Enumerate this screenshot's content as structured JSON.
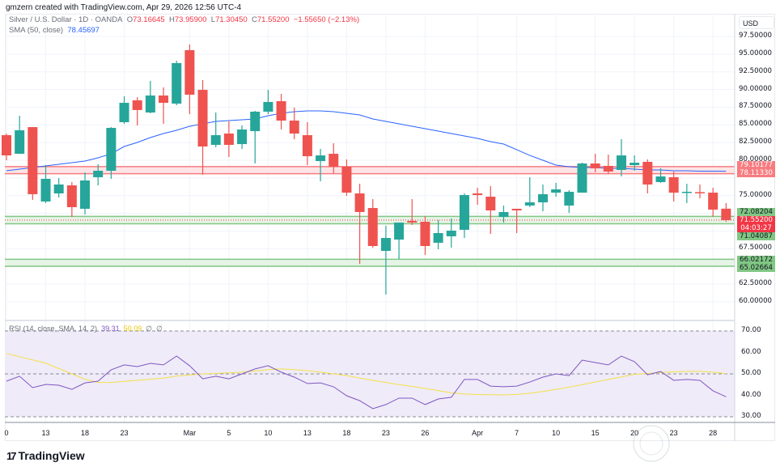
{
  "header": {
    "credit": "gmzern created with TradingView.com, Apr 29, 2026 12:56 UTC-4"
  },
  "legend": {
    "symbol": "Silver / U.S. Dollar · 1D · OANDA",
    "open_label": "O",
    "open": "73.16645",
    "high_label": "H",
    "high": "73.95900",
    "low_label": "L",
    "low": "71.30450",
    "close_label": "C",
    "close": "71.55200",
    "change": "−1.55650 (−2.13%)",
    "sma_label": "SMA (50, close)",
    "sma_value": "78.45697"
  },
  "rsi_legend": {
    "label": "RSI (14, close, SMA, 14, 2)",
    "rsi_value": "39.31",
    "sma_value": "50.09",
    "extra1": "∅",
    "extra2": "∅"
  },
  "price_axis": {
    "currency": "USD",
    "ticks": [
      "97.50000",
      "95.00000",
      "92.50000",
      "90.00000",
      "87.50000",
      "85.00000",
      "82.50000",
      "80.00000",
      "75.00000",
      "67.50000",
      "62.50000",
      "60.00000"
    ],
    "tags": {
      "red_band_top": "79.10177",
      "red_band_bottom": "78.11330",
      "green_top_1": "72.08204",
      "current_price": "71.55200",
      "countdown": "04:03:27",
      "green_bottom_1": "71.04087",
      "green_top_2": "66.02172",
      "green_bottom_2": "65.02664"
    }
  },
  "rsi_axis": {
    "ticks": [
      "70.00",
      "60.00",
      "50.00",
      "40.00",
      "30.00"
    ]
  },
  "colors": {
    "up": "#26a69a",
    "down": "#ef5350",
    "sma": "#2962ff",
    "rsi": "#7e57c2",
    "rsi_sma": "#f5e04a",
    "red_band": "#f77c80",
    "green_band": "#81c784"
  },
  "chart_data": {
    "type": "candlestick",
    "ylim": [
      59,
      98
    ],
    "zones": [
      {
        "type": "resistance",
        "top": 79.10177,
        "bottom": 78.1133
      },
      {
        "type": "support",
        "top": 72.08204,
        "bottom": 71.04087
      },
      {
        "type": "support",
        "top": 66.02172,
        "bottom": 65.02664
      }
    ],
    "x_ticks": [
      {
        "index": 0,
        "label": "0"
      },
      {
        "index": 3,
        "label": "13"
      },
      {
        "index": 6,
        "label": "18"
      },
      {
        "index": 9,
        "label": "23"
      },
      {
        "index": 14,
        "label": "Mar"
      },
      {
        "index": 17,
        "label": "5"
      },
      {
        "index": 20,
        "label": "10"
      },
      {
        "index": 23,
        "label": "13"
      },
      {
        "index": 26,
        "label": "18"
      },
      {
        "index": 29,
        "label": "23"
      },
      {
        "index": 32,
        "label": "26"
      },
      {
        "index": 36,
        "label": "Apr"
      },
      {
        "index": 39,
        "label": "7"
      },
      {
        "index": 42,
        "label": "10"
      },
      {
        "index": 45,
        "label": "15"
      },
      {
        "index": 48,
        "label": "20"
      },
      {
        "index": 51,
        "label": "23"
      },
      {
        "index": 54,
        "label": "28"
      }
    ],
    "ohlc": [
      [
        83.55,
        83.78,
        80.01,
        80.69
      ],
      [
        80.92,
        86.3,
        80.92,
        84.24
      ],
      [
        84.69,
        84.69,
        74.41,
        75.21
      ],
      [
        74.18,
        79.32,
        73.95,
        77.38
      ],
      [
        75.32,
        77.49,
        74.75,
        76.58
      ],
      [
        76.46,
        76.92,
        72.0,
        73.38
      ],
      [
        73.15,
        78.29,
        72.35,
        77.15
      ],
      [
        77.61,
        79.44,
        76.46,
        78.52
      ],
      [
        78.52,
        84.69,
        77.38,
        84.58
      ],
      [
        85.38,
        89.04,
        85.15,
        88.12
      ],
      [
        88.47,
        88.92,
        84.92,
        87.1
      ],
      [
        86.75,
        91.21,
        86.64,
        89.15
      ],
      [
        89.15,
        90.3,
        85.15,
        88.12
      ],
      [
        88.01,
        94.07,
        87.78,
        93.73
      ],
      [
        95.56,
        96.36,
        86.52,
        89.27
      ],
      [
        89.95,
        91.33,
        77.95,
        81.95
      ],
      [
        82.18,
        86.75,
        81.84,
        83.55
      ],
      [
        83.78,
        85.5,
        80.46,
        82.18
      ],
      [
        82.29,
        84.92,
        81.61,
        84.35
      ],
      [
        84.12,
        86.98,
        79.55,
        86.87
      ],
      [
        86.87,
        89.95,
        86.52,
        88.24
      ],
      [
        88.35,
        89.38,
        84.35,
        85.61
      ],
      [
        85.61,
        87.44,
        82.98,
        83.78
      ],
      [
        83.55,
        85.38,
        79.32,
        80.58
      ],
      [
        79.89,
        81.61,
        77.03,
        80.69
      ],
      [
        80.92,
        82.41,
        78.18,
        79.09
      ],
      [
        79.09,
        80.12,
        74.98,
        75.43
      ],
      [
        75.32,
        76.69,
        65.37,
        72.69
      ],
      [
        73.26,
        74.52,
        67.66,
        67.89
      ],
      [
        67.2,
        70.75,
        61.03,
        69.03
      ],
      [
        68.8,
        71.2,
        66.06,
        71.2
      ],
      [
        71.43,
        74.52,
        70.86,
        71.2
      ],
      [
        71.32,
        72.12,
        66.63,
        67.89
      ],
      [
        68.35,
        71.55,
        67.43,
        69.72
      ],
      [
        69.26,
        71.78,
        67.66,
        70.06
      ],
      [
        70.18,
        75.32,
        69.03,
        75.09
      ],
      [
        75.32,
        76.12,
        73.72,
        75.09
      ],
      [
        74.86,
        76.35,
        69.6,
        72.92
      ],
      [
        72.0,
        73.61,
        71.2,
        72.69
      ],
      [
        73.15,
        73.15,
        69.72,
        72.92
      ],
      [
        73.61,
        77.61,
        73.38,
        74.06
      ],
      [
        74.06,
        76.58,
        72.8,
        75.21
      ],
      [
        75.43,
        76.81,
        74.86,
        75.89
      ],
      [
        73.61,
        75.78,
        72.58,
        75.55
      ],
      [
        75.43,
        79.66,
        75.43,
        79.55
      ],
      [
        79.55,
        80.92,
        78.29,
        78.86
      ],
      [
        79.21,
        80.81,
        78.06,
        78.41
      ],
      [
        78.64,
        82.98,
        77.72,
        80.69
      ],
      [
        79.32,
        80.69,
        78.52,
        79.66
      ],
      [
        79.78,
        80.12,
        75.32,
        76.58
      ],
      [
        76.92,
        78.86,
        76.81,
        77.72
      ],
      [
        77.61,
        78.41,
        74.18,
        75.43
      ],
      [
        75.5,
        76.69,
        73.95,
        75.55
      ],
      [
        75.5,
        76.58,
        74.63,
        75.43
      ],
      [
        75.43,
        76.12,
        72.0,
        73.03
      ],
      [
        73.16645,
        73.959,
        71.3045,
        71.552
      ]
    ],
    "sma50": [
      78.52,
      78.75,
      78.98,
      79.21,
      79.44,
      79.66,
      79.89,
      80.35,
      80.92,
      81.95,
      82.52,
      83.21,
      83.78,
      84.24,
      84.81,
      85.15,
      85.5,
      85.61,
      85.72,
      85.84,
      86.3,
      86.64,
      86.87,
      86.98,
      86.98,
      86.87,
      86.64,
      86.41,
      85.84,
      85.5,
      85.15,
      84.81,
      84.47,
      84.12,
      83.78,
      83.44,
      83.1,
      82.64,
      82.29,
      81.5,
      80.69,
      80.01,
      79.32,
      79.09,
      78.98,
      78.98,
      78.86,
      78.86,
      78.75,
      78.64,
      78.64,
      78.52,
      78.52,
      78.46,
      78.46,
      78.45697
    ],
    "rsi": {
      "ylim": [
        30,
        70
      ],
      "levels": [
        70,
        50,
        30
      ],
      "values": [
        46.6,
        48.9,
        43.6,
        45.1,
        44.7,
        42.8,
        45.8,
        46.6,
        51.9,
        54.2,
        53.4,
        54.9,
        54.2,
        58.3,
        53.8,
        47.7,
        48.9,
        47.7,
        50,
        52.3,
        53.8,
        50.8,
        48.5,
        45.5,
        45.8,
        44,
        39.8,
        37.5,
        33.8,
        35.7,
        38.7,
        38.7,
        35.7,
        38.3,
        39.1,
        47.4,
        47.4,
        44.3,
        44,
        44.3,
        46.2,
        48.5,
        50,
        49.2,
        56.4,
        55.3,
        54.2,
        58.3,
        55.7,
        49.6,
        51.1,
        47,
        47.4,
        47,
        42.1,
        39.31
      ],
      "sma": [
        59.5,
        58,
        56.5,
        55,
        52.5,
        50,
        47.5,
        46,
        46,
        46.5,
        47,
        47.5,
        48,
        49,
        49.5,
        50,
        50.2,
        50.5,
        50.8,
        51.3,
        52,
        52.3,
        52,
        51.5,
        50.8,
        50,
        49.2,
        48,
        47,
        46,
        45,
        44.2,
        43.2,
        42.2,
        41.2,
        40.6,
        40.4,
        40.3,
        40.2,
        40.4,
        41,
        41.8,
        42.8,
        43.8,
        45,
        46.2,
        47.4,
        48.6,
        49.8,
        50.2,
        50.6,
        51,
        51.2,
        51.2,
        50.8,
        50.09
      ]
    }
  },
  "branding": {
    "logo_mark": "17",
    "logo_text": "TradingView",
    "watermark": "华通白银网"
  }
}
